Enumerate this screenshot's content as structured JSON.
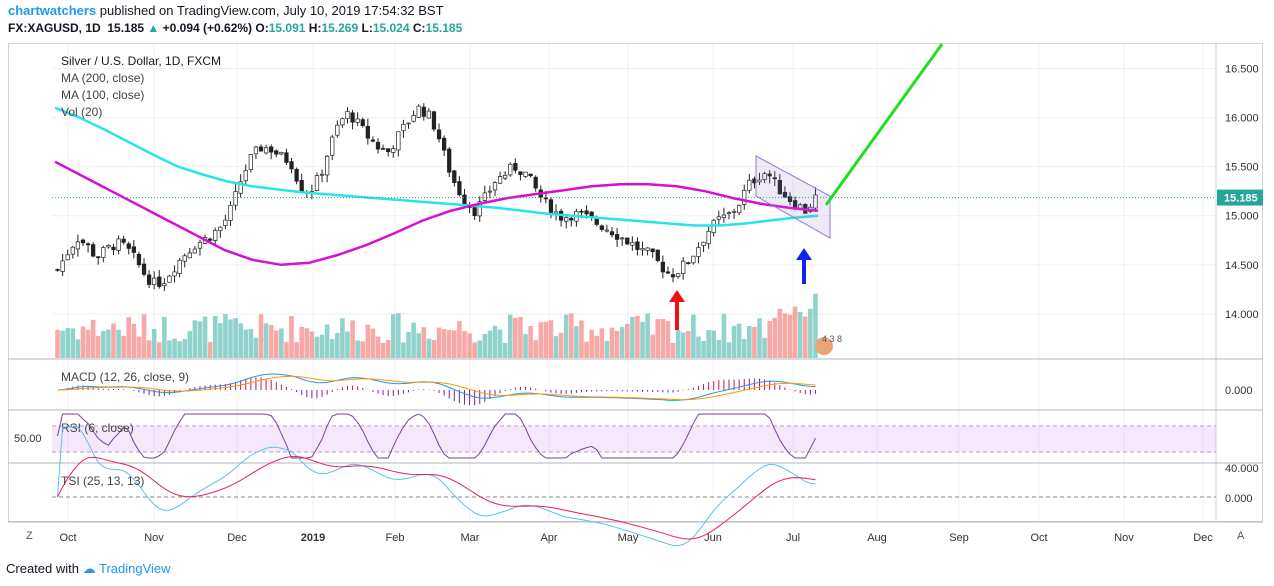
{
  "header": {
    "user": "chartwatchers",
    "published_text": "published on TradingView.com, July 10, 2019 17:54:32 BST",
    "symbol": "FX:XAGUSD, 1D",
    "last": "15.185",
    "change_arrow": "▲",
    "change": "+0.094 (+0.62%)",
    "o_label": "O:",
    "o": "15.091",
    "h_label": "H:",
    "h": "15.269",
    "l_label": "L:",
    "l": "15.024",
    "c_label": "C:",
    "c": "15.185"
  },
  "legend": {
    "title": "Silver / U.S. Dollar, 1D, FXCM",
    "ma200": "MA (200, close)",
    "ma100": "MA (100, close)",
    "vol": "Vol (20)"
  },
  "indicators": {
    "macd": "MACD (12, 26, close, 9)",
    "rsi": "RSI (6, close)",
    "tsi": "TSI (25, 13, 13)"
  },
  "footer": {
    "created_with": "Created with",
    "brand": "TradingView",
    "corner_left": "Z",
    "corner_right": "A"
  },
  "chart_data": {
    "type": "candlestick",
    "title": "Silver / U.S. Dollar, 1D, FXCM",
    "price_axis_ticks": [
      14.0,
      14.5,
      15.0,
      15.5,
      16.0,
      16.5
    ],
    "price_axis_labels": [
      "14.000",
      "14.500",
      "15.000",
      "15.500",
      "16.000",
      "16.500"
    ],
    "ylim": [
      13.55,
      16.75
    ],
    "x_labels": [
      "Oct",
      "Nov",
      "Dec",
      "2019",
      "Feb",
      "Mar",
      "Apr",
      "May",
      "Jun",
      "Jul",
      "Aug",
      "Sep",
      "Oct",
      "Nov",
      "Dec"
    ],
    "last_price": 15.185,
    "last_price_label": "15.185",
    "close_series": [
      14.45,
      14.62,
      14.78,
      14.7,
      14.58,
      14.65,
      14.72,
      14.68,
      14.55,
      14.4,
      14.3,
      14.35,
      14.48,
      14.6,
      14.7,
      14.75,
      14.82,
      14.9,
      15.1,
      15.4,
      15.6,
      15.7,
      15.68,
      15.6,
      15.55,
      15.3,
      15.25,
      15.4,
      15.7,
      15.95,
      16.05,
      15.92,
      15.8,
      15.7,
      15.65,
      15.8,
      15.95,
      16.1,
      16.05,
      15.88,
      15.55,
      15.3,
      15.15,
      15.05,
      15.18,
      15.35,
      15.42,
      15.5,
      15.45,
      15.3,
      15.15,
      15.05,
      14.98,
      15.02,
      15.0,
      14.95,
      14.9,
      14.85,
      14.78,
      14.72,
      14.65,
      14.6,
      14.5,
      14.4,
      14.45,
      14.55,
      14.7,
      14.85,
      14.95,
      15.0,
      15.1,
      15.3,
      15.4,
      15.45,
      15.3,
      15.2,
      15.12,
      15.05,
      15.185
    ],
    "ma200_series": [
      16.1,
      16.0,
      15.88,
      15.75,
      15.62,
      15.5,
      15.42,
      15.35,
      15.3,
      15.27,
      15.24,
      15.22,
      15.2,
      15.18,
      15.16,
      15.14,
      15.12,
      15.1,
      15.08,
      15.05,
      15.02,
      15.0,
      14.98,
      14.96,
      14.94,
      14.92,
      14.9,
      14.9,
      14.92,
      14.95,
      14.98,
      15.0
    ],
    "ma100_series": [
      15.55,
      15.4,
      15.25,
      15.1,
      14.95,
      14.8,
      14.65,
      14.55,
      14.5,
      14.52,
      14.6,
      14.7,
      14.82,
      14.95,
      15.05,
      15.12,
      15.18,
      15.22,
      15.26,
      15.3,
      15.32,
      15.32,
      15.3,
      15.25,
      15.18,
      15.12,
      15.08,
      15.05
    ],
    "annotations": {
      "red_arrow_at": "May",
      "blue_arrow_at": "Jul",
      "channel": "falling wedge (purple)",
      "projection": "green breakout line"
    },
    "indicator_axis": {
      "macd_label": "0.000",
      "rsi_label": "50.00",
      "tsi_labels": [
        "40.000",
        "0.000"
      ]
    },
    "volume_badge": "4 3 8"
  }
}
